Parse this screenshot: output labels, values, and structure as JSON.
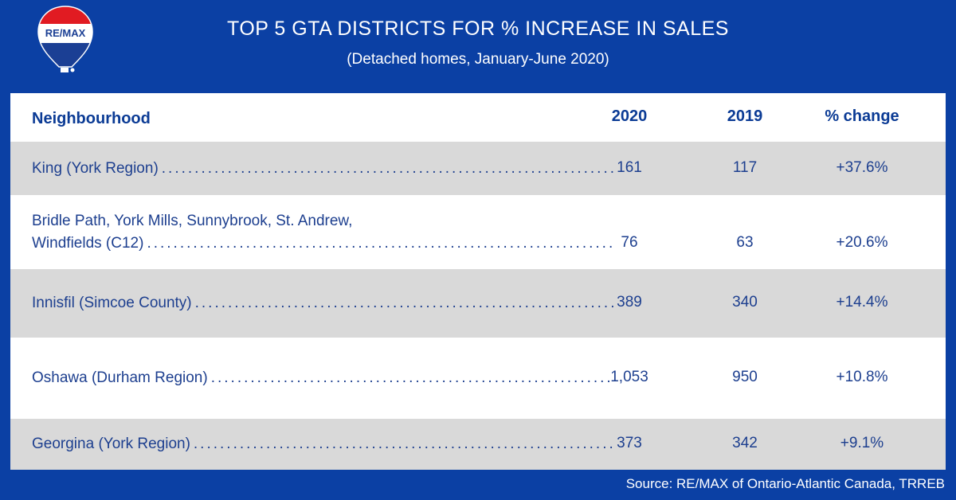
{
  "brand": {
    "logo_text": "RE/MAX"
  },
  "header": {
    "title": "TOP 5 GTA DISTRICTS FOR % INCREASE IN SALES",
    "subtitle": "(Detached homes, January-June 2020)"
  },
  "chart_data": {
    "type": "table",
    "title": "TOP 5 GTA DISTRICTS FOR % INCREASE IN SALES",
    "subtitle": "(Detached homes, January-June 2020)",
    "columns": [
      "Neighbourhood",
      "2020",
      "2019",
      "% change"
    ],
    "rows": [
      {
        "name": [
          "King (York Region)"
        ],
        "y2020": "161",
        "y2019": "117",
        "change": "+37.6%"
      },
      {
        "name": [
          "Bridle Path, York Mills, Sunnybrook, St. Andrew,",
          "Windfields (C12)"
        ],
        "y2020": "76",
        "y2019": "63",
        "change": "+20.6%"
      },
      {
        "name": [
          "Innisfil (Simcoe County)"
        ],
        "y2020": "389",
        "y2019": "340",
        "change": "+14.4%"
      },
      {
        "name": [
          "Oshawa (Durham Region)"
        ],
        "y2020": "1,053",
        "y2019": "950",
        "change": "+10.8%"
      },
      {
        "name": [
          "Georgina (York Region)"
        ],
        "y2020": "373",
        "y2019": "342",
        "change": "+9.1%"
      }
    ]
  },
  "footer": {
    "source": "Source:  RE/MAX of Ontario-Atlantic Canada, TRREB"
  }
}
